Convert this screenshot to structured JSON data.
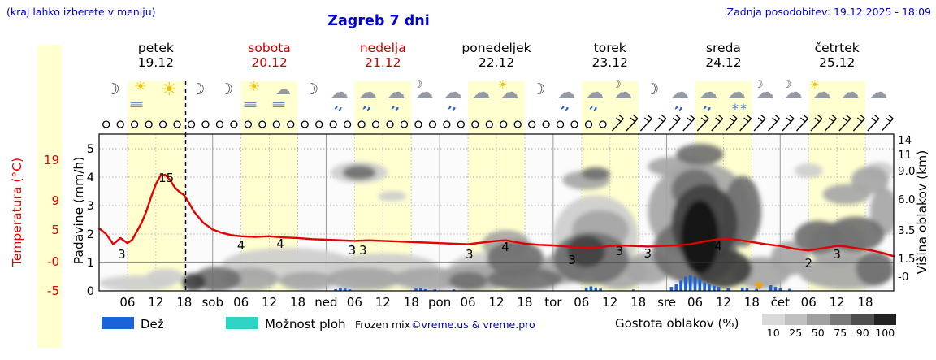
{
  "header": {
    "hint": "(kraj lahko izberete v meniju)",
    "title": "Zagreb 7 dni",
    "updated": "Zadnja posodobitev: 19.12.2025 - 18:09"
  },
  "colors": {
    "blue_text": "#0000cc",
    "day_band": "#ffffd0",
    "temp_line": "#e00000",
    "rain_bar": "#1a63d9",
    "showers": "#2ed3c3",
    "frozen_marker": "#f0a500"
  },
  "days": [
    {
      "name": "petek",
      "date": "19.12",
      "color": "#000000"
    },
    {
      "name": "sobota",
      "date": "20.12",
      "color": "#cc0000"
    },
    {
      "name": "nedelja",
      "date": "21.12",
      "color": "#cc0000"
    },
    {
      "name": "ponedeljek",
      "date": "22.12",
      "color": "#000000"
    },
    {
      "name": "torek",
      "date": "23.12",
      "color": "#000000"
    },
    {
      "name": "sreda",
      "date": "24.12",
      "color": "#000000"
    },
    {
      "name": "četrtek",
      "date": "25.12",
      "color": "#000000"
    }
  ],
  "axes": {
    "temperature": {
      "label": "Temperatura (°C)",
      "ticks": [
        {
          "text": "19",
          "y": 197
        },
        {
          "text": "9",
          "y": 247
        },
        {
          "text": "5",
          "y": 283
        },
        {
          "text": "-0",
          "y": 322
        },
        {
          "text": "-5",
          "y": 358
        }
      ]
    },
    "precip": {
      "label": "Padavine (mm/h)",
      "ticks": [
        {
          "text": "5",
          "y": 183
        },
        {
          "text": "4",
          "y": 218
        },
        {
          "text": "3",
          "y": 253
        },
        {
          "text": "2",
          "y": 288
        },
        {
          "text": "1",
          "y": 323
        },
        {
          "text": "0",
          "y": 358
        }
      ]
    },
    "cloud_height": {
      "label": "Višina oblakov (km)",
      "ticks": [
        {
          "text": "14",
          "y": 172
        },
        {
          "text": "11",
          "y": 190
        },
        {
          "text": "9.0",
          "y": 210
        },
        {
          "text": "6.0",
          "y": 245
        },
        {
          "text": "3.5",
          "y": 283
        },
        {
          "text": "1.5",
          "y": 318
        },
        {
          "text": "-0",
          "y": 340
        }
      ]
    },
    "x_ticks": [
      {
        "text": "06",
        "h": 6
      },
      {
        "text": "12",
        "h": 12
      },
      {
        "text": "18",
        "h": 18
      },
      {
        "text": "sob",
        "h": 24
      },
      {
        "text": "06",
        "h": 30
      },
      {
        "text": "12",
        "h": 36
      },
      {
        "text": "18",
        "h": 42
      },
      {
        "text": "ned",
        "h": 48
      },
      {
        "text": "06",
        "h": 54
      },
      {
        "text": "12",
        "h": 60
      },
      {
        "text": "18",
        "h": 66
      },
      {
        "text": "pon",
        "h": 72
      },
      {
        "text": "06",
        "h": 78
      },
      {
        "text": "12",
        "h": 84
      },
      {
        "text": "18",
        "h": 90
      },
      {
        "text": "tor",
        "h": 96
      },
      {
        "text": "06",
        "h": 102
      },
      {
        "text": "12",
        "h": 108
      },
      {
        "text": "18",
        "h": 114
      },
      {
        "text": "sre",
        "h": 120
      },
      {
        "text": "06",
        "h": 126
      },
      {
        "text": "12",
        "h": 132
      },
      {
        "text": "18",
        "h": 138
      },
      {
        "text": "čet",
        "h": 144
      },
      {
        "text": "06",
        "h": 150
      },
      {
        "text": "12",
        "h": 156
      },
      {
        "text": "18",
        "h": 162
      }
    ]
  },
  "icons": [
    "moon",
    "sun-fog",
    "sun",
    "moon",
    "moon",
    "sun-fog",
    "cloud-fog",
    "moon",
    "rain",
    "rain",
    "rain",
    "moon-cloud",
    "rain",
    "cloud",
    "sun-cloud",
    "moon",
    "rain",
    "rain",
    "moon-cloud",
    "moon",
    "rain",
    "rain",
    "snow",
    "moon-cloud",
    "moon-cloud",
    "sun-cloud",
    "cloud",
    "cloud"
  ],
  "legend": {
    "rain": {
      "label": "Dež",
      "color": "#1a63d9"
    },
    "showers": {
      "label": "Možnost ploh",
      "color": "#2ed3c3"
    },
    "frozen_label": "Frozen mix",
    "credit": "©vreme.us & vreme.pro",
    "cloud_density": {
      "label": "Gostota oblakov (%)",
      "values": [
        "10",
        "25",
        "50",
        "75",
        "90",
        "100"
      ],
      "colors": [
        "#d9d9d9",
        "#c0c0c0",
        "#a0a0a0",
        "#787878",
        "#4e4e4e",
        "#222222"
      ]
    }
  },
  "chart_data": {
    "type": "meteogram",
    "title": "Zagreb 7 dni",
    "x_unit": "hours from 19.12 00:00, 7 days, daytime bands 06-18",
    "now_line_hour": 18.3,
    "temperature_c": [
      [
        0,
        6
      ],
      [
        1.5,
        5
      ],
      [
        3,
        3.2
      ],
      [
        4.5,
        4.3
      ],
      [
        6,
        3.4
      ],
      [
        7,
        4
      ],
      [
        8,
        5.5
      ],
      [
        9,
        7
      ],
      [
        10,
        9
      ],
      [
        11,
        11.5
      ],
      [
        12,
        13.8
      ],
      [
        13,
        15.3
      ],
      [
        14,
        15.4
      ],
      [
        15,
        14.5
      ],
      [
        16,
        13.2
      ],
      [
        17,
        12.4
      ],
      [
        18,
        11.8
      ],
      [
        19,
        10.5
      ],
      [
        20,
        9
      ],
      [
        22,
        7
      ],
      [
        24,
        5.8
      ],
      [
        26,
        5.2
      ],
      [
        28,
        4.8
      ],
      [
        30,
        4.6
      ],
      [
        33,
        4.5
      ],
      [
        36,
        4.6
      ],
      [
        39,
        4.4
      ],
      [
        42,
        4.3
      ],
      [
        45,
        4.1
      ],
      [
        48,
        4
      ],
      [
        51,
        3.9
      ],
      [
        54,
        3.8
      ],
      [
        57,
        3.9
      ],
      [
        60,
        3.8
      ],
      [
        63,
        3.7
      ],
      [
        66,
        3.6
      ],
      [
        69,
        3.5
      ],
      [
        72,
        3.4
      ],
      [
        75,
        3.3
      ],
      [
        78,
        3.2
      ],
      [
        81,
        3.5
      ],
      [
        84,
        3.8
      ],
      [
        86,
        3.9
      ],
      [
        88,
        3.6
      ],
      [
        90,
        3.3
      ],
      [
        93,
        3.1
      ],
      [
        96,
        3
      ],
      [
        99,
        2.8
      ],
      [
        102,
        2.6
      ],
      [
        104,
        2.5
      ],
      [
        106,
        2.7
      ],
      [
        108,
        2.9
      ],
      [
        110,
        3
      ],
      [
        113,
        2.9
      ],
      [
        116,
        2.8
      ],
      [
        119,
        2.9
      ],
      [
        122,
        3
      ],
      [
        125,
        3.2
      ],
      [
        128,
        3.7
      ],
      [
        131,
        4.1
      ],
      [
        133,
        4.2
      ],
      [
        135,
        4
      ],
      [
        138,
        3.6
      ],
      [
        141,
        3.2
      ],
      [
        144,
        2.9
      ],
      [
        147,
        2.4
      ],
      [
        150,
        2.1
      ],
      [
        153,
        2.5
      ],
      [
        156,
        2.9
      ],
      [
        158,
        2.8
      ],
      [
        160,
        2.5
      ],
      [
        162,
        2.3
      ],
      [
        164,
        2
      ],
      [
        166,
        1.6
      ],
      [
        168,
        1.1
      ]
    ],
    "temperature_point_labels": [
      [
        4.8,
        "3",
        313
      ],
      [
        14.2,
        "15",
        219
      ],
      [
        30,
        "4",
        302
      ],
      [
        38.3,
        "4",
        300
      ],
      [
        53.5,
        "3",
        308
      ],
      [
        55.8,
        "3",
        308
      ],
      [
        78.3,
        "3",
        313
      ],
      [
        85.9,
        "4",
        304
      ],
      [
        100,
        "3",
        320
      ],
      [
        110,
        "3",
        309
      ],
      [
        116,
        "3",
        312
      ],
      [
        130.9,
        "4",
        303
      ],
      [
        150,
        "2",
        324
      ],
      [
        156,
        "3",
        313
      ]
    ],
    "precip_mm_h": [
      [
        50,
        0.06
      ],
      [
        51,
        0.1
      ],
      [
        52,
        0.08
      ],
      [
        53,
        0.05
      ],
      [
        67,
        0.08
      ],
      [
        68,
        0.1
      ],
      [
        69,
        0.06
      ],
      [
        71,
        0.05
      ],
      [
        75,
        0.05
      ],
      [
        103,
        0.12
      ],
      [
        104,
        0.16
      ],
      [
        105,
        0.12
      ],
      [
        106,
        0.08
      ],
      [
        113,
        0.05
      ],
      [
        121,
        0.14
      ],
      [
        122,
        0.24
      ],
      [
        123,
        0.36
      ],
      [
        124,
        0.5
      ],
      [
        125,
        0.55
      ],
      [
        126,
        0.5
      ],
      [
        127,
        0.42
      ],
      [
        128,
        0.3
      ],
      [
        129,
        0.24
      ],
      [
        130,
        0.18
      ],
      [
        131,
        0.14
      ],
      [
        133,
        0.1
      ],
      [
        136,
        0.12
      ],
      [
        137,
        0.09
      ],
      [
        139,
        0.07
      ],
      [
        142,
        0.2
      ],
      [
        143,
        0.14
      ],
      [
        144,
        0.1
      ],
      [
        146,
        0.07
      ]
    ],
    "frozen_mix_marker_hour": 139.5,
    "cloud_blobs_format": "[hour_center, km_center, hour_radius, km_radius, density_percent]",
    "cloud_blobs": [
      [
        8,
        0.3,
        8,
        0.45,
        25
      ],
      [
        14,
        0.6,
        4,
        0.4,
        25
      ],
      [
        20,
        0.35,
        2.5,
        0.5,
        90
      ],
      [
        25,
        0.5,
        5,
        0.7,
        75
      ],
      [
        32,
        0.5,
        6,
        0.6,
        50
      ],
      [
        40,
        1.2,
        14,
        0.9,
        25
      ],
      [
        44,
        0.4,
        6,
        0.5,
        50
      ],
      [
        55,
        8.8,
        6,
        1.2,
        25
      ],
      [
        55,
        8.8,
        3.5,
        0.8,
        75
      ],
      [
        62,
        6.3,
        3,
        0.5,
        25
      ],
      [
        56,
        0.5,
        8,
        0.6,
        50
      ],
      [
        60,
        1.0,
        12,
        0.8,
        25
      ],
      [
        70,
        0.5,
        8,
        0.6,
        50
      ],
      [
        78,
        0.4,
        4,
        0.5,
        75
      ],
      [
        80,
        0.6,
        8,
        0.7,
        50
      ],
      [
        84,
        1.0,
        10,
        0.9,
        25
      ],
      [
        86,
        2.5,
        5,
        1.0,
        50
      ],
      [
        88,
        1.5,
        6,
        1.0,
        75
      ],
      [
        90,
        0.5,
        8,
        0.6,
        75
      ],
      [
        98,
        1.0,
        5,
        0.8,
        50
      ],
      [
        105,
        3.0,
        9,
        2.8,
        25
      ],
      [
        103,
        8.0,
        5,
        1.0,
        50
      ],
      [
        105,
        8.7,
        3,
        0.7,
        75
      ],
      [
        104,
        1.5,
        8,
        1.5,
        75
      ],
      [
        103,
        2.0,
        4,
        1.0,
        90
      ],
      [
        106,
        3.5,
        6,
        1.5,
        50
      ],
      [
        110,
        0.8,
        6,
        0.8,
        50
      ],
      [
        116,
        1.0,
        5,
        0.8,
        50
      ],
      [
        122,
        9.5,
        6,
        1.2,
        50
      ],
      [
        127,
        5.0,
        11,
        4.0,
        50
      ],
      [
        126,
        7.0,
        5,
        2.0,
        75
      ],
      [
        126,
        2.0,
        9,
        2.0,
        75
      ],
      [
        127,
        11.0,
        5,
        1.5,
        75
      ],
      [
        128,
        4.0,
        7,
        3.0,
        90
      ],
      [
        127,
        3.0,
        4,
        2.5,
        100
      ],
      [
        132,
        1.0,
        6,
        1.0,
        90
      ],
      [
        136,
        5.0,
        4,
        3.0,
        75
      ],
      [
        140,
        0.8,
        6,
        0.8,
        50
      ],
      [
        146,
        1.5,
        4,
        1.0,
        50
      ],
      [
        150,
        9.0,
        3,
        0.8,
        25
      ],
      [
        152,
        3.0,
        5,
        1.2,
        75
      ],
      [
        156,
        2.5,
        6,
        1.5,
        50
      ],
      [
        158,
        6.5,
        5,
        1.0,
        50
      ],
      [
        158,
        0.8,
        10,
        0.8,
        50
      ],
      [
        160,
        3.2,
        6,
        1.3,
        75
      ],
      [
        163,
        8.0,
        4,
        1.5,
        50
      ],
      [
        164,
        1.0,
        4,
        0.9,
        75
      ],
      [
        165,
        9.0,
        3,
        1.0,
        25
      ],
      [
        166,
        5.0,
        3,
        2.0,
        50
      ]
    ],
    "cloud_cover_circles": {
      "start_hour": 1.5,
      "step_hours": 3,
      "count": 36
    },
    "wind_barbs": {
      "start_hour": 109.5,
      "step_hours": 3,
      "count": 20
    },
    "precip_axis_range_mm_h": [
      0,
      5.57
    ],
    "temp_scale": "5 °C per precip unit, 0 °C at precip=1 gridline"
  }
}
